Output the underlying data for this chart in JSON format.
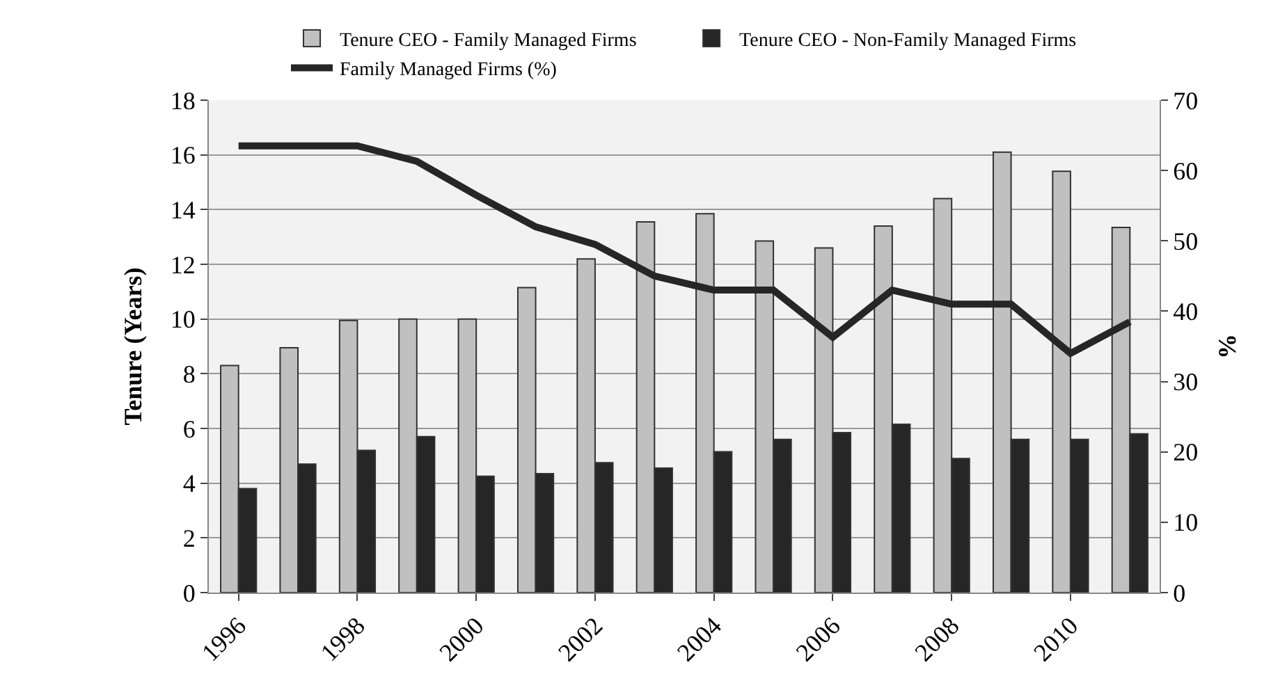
{
  "chart_data": {
    "type": "bar",
    "categories": [
      "1996",
      null,
      "1998",
      null,
      "2000",
      null,
      "2002",
      null,
      "2004",
      null,
      "2006",
      null,
      "2008",
      null,
      "2010",
      null
    ],
    "series": [
      {
        "name": "Tenure CEO - Family Managed Firms",
        "color": "#c0c0c0",
        "values": [
          8.3,
          8.95,
          9.95,
          10.0,
          10.0,
          11.15,
          12.2,
          13.55,
          13.85,
          12.85,
          12.6,
          13.4,
          14.4,
          16.1,
          15.4,
          13.35
        ]
      },
      {
        "name": "Tenure CEO - Non-Family Managed Firms",
        "color": "#262626",
        "values": [
          3.8,
          4.7,
          5.2,
          5.7,
          4.25,
          4.35,
          4.75,
          4.55,
          5.15,
          5.6,
          5.85,
          6.15,
          4.9,
          5.6,
          5.6,
          5.8
        ]
      },
      {
        "name": "Family Managed Firms (%)",
        "color": "#262626",
        "type": "line",
        "axis": "y2",
        "values": [
          63.5,
          63.5,
          63.5,
          61.3,
          56.5,
          52,
          49.5,
          45,
          43,
          43,
          36.3,
          43,
          41,
          41,
          34,
          38.5
        ]
      }
    ],
    "ylabel": "Tenure (Years)",
    "y2label": "%",
    "ylim": [
      0,
      18
    ],
    "yticks": [
      0,
      2,
      4,
      6,
      8,
      10,
      12,
      14,
      16,
      18
    ],
    "y2lim": [
      0,
      70
    ],
    "y2ticks": [
      0,
      10,
      20,
      30,
      40,
      50,
      60,
      70
    ],
    "grid": "y",
    "legend": "top",
    "marker": "none",
    "line_style": "solid"
  }
}
